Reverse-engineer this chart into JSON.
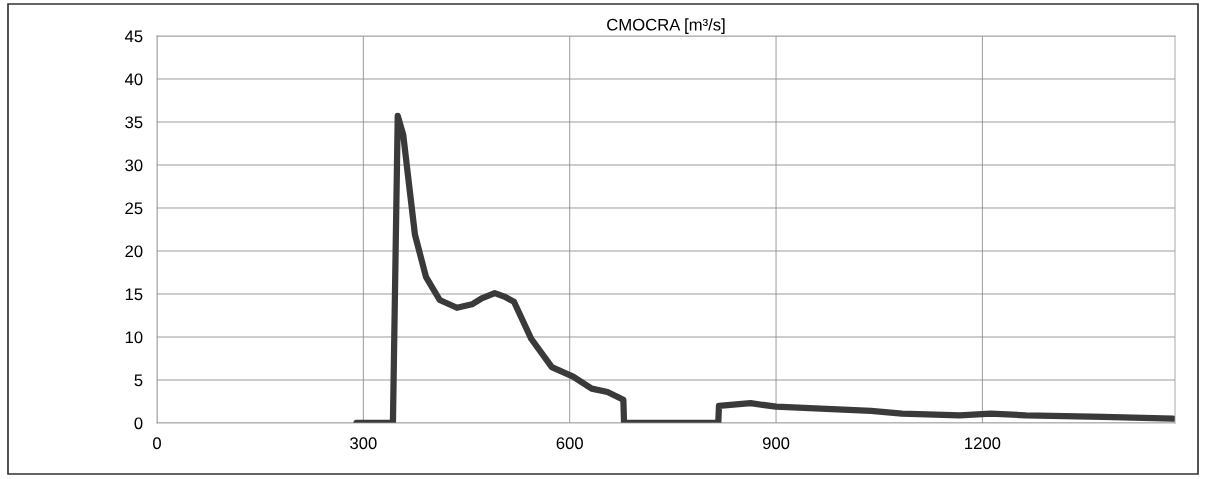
{
  "chart_data": {
    "type": "line",
    "title": "CMOCRA [m³/s]",
    "x": [
      290,
      343,
      350,
      358,
      366,
      375,
      391,
      411,
      436,
      458,
      472,
      491,
      505,
      519,
      544,
      574,
      605,
      632,
      655,
      678,
      679,
      816,
      817,
      863,
      900,
      1038,
      1083,
      1167,
      1212,
      1263,
      1376,
      1477
    ],
    "series": [
      {
        "color": "#3a3a3a",
        "values": [
          0,
          0,
          35.7,
          33.5,
          28,
          21.9,
          17,
          14.3,
          13.4,
          13.8,
          14.5,
          15.1,
          14.7,
          14.1,
          9.8,
          6.5,
          5.4,
          4.0,
          3.6,
          2.7,
          0,
          0,
          2.0,
          2.3,
          1.9,
          1.4,
          1.1,
          0.9,
          1.1,
          0.9,
          0.7,
          0.5
        ]
      }
    ],
    "xlim": [
      0,
      1480
    ],
    "xticks": [
      0,
      300,
      600,
      900,
      1200
    ],
    "ylim": [
      0,
      45
    ],
    "yticks": [
      0,
      5,
      10,
      15,
      20,
      25,
      30,
      35,
      40,
      45
    ],
    "grid": true,
    "legend": false,
    "marker": "none",
    "line_style": "solid"
  }
}
